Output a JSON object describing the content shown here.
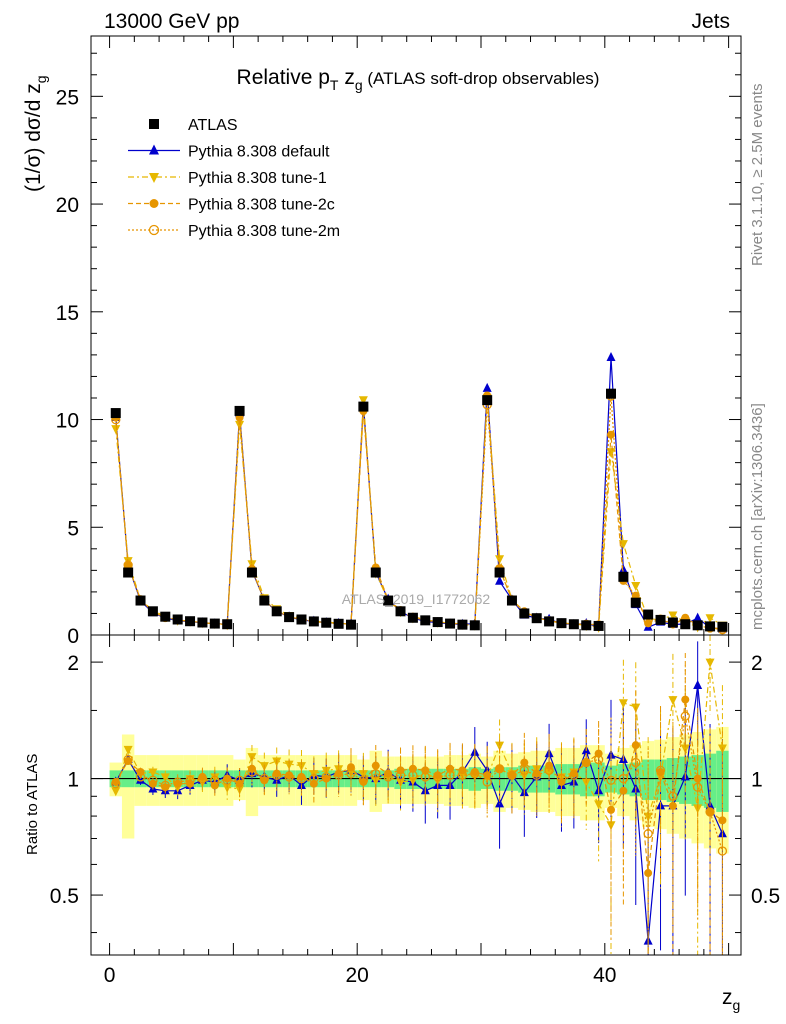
{
  "header": {
    "left": "13000 GeV pp",
    "right": "Jets"
  },
  "side_labels": {
    "rivet": "Rivet 3.1.10, ≥ 2.5M events",
    "mcplots": "mcplots.cern.ch [arXiv:1306.3436]"
  },
  "watermark": "ATLAS_2019_I1772062",
  "chart_data": {
    "type": "scatter",
    "title": "Relative p_T z_g (ATLAS soft-drop observables)",
    "title_parts": {
      "main": "Relative p",
      "sub": "T",
      "mid": " z",
      "sub2": "g",
      "tail": " (ATLAS soft-drop observables)"
    },
    "xlabel": "z_g",
    "xlabel_parts": {
      "main": "z",
      "sub": "g"
    },
    "ylabel": "(1/σ) dσ/d z_g",
    "ylabel_parts": {
      "main": "(1/σ) dσ/d z",
      "sub": "g"
    },
    "ratio_ylabel": "Ratio to ATLAS",
    "xlim": [
      -1.5,
      51
    ],
    "ylim": [
      0,
      27.8
    ],
    "ratio_ylim": [
      0.35,
      2.35
    ],
    "x_ticks": [
      0,
      20,
      40
    ],
    "y_ticks": [
      0,
      5,
      10,
      15,
      20,
      25
    ],
    "ratio_ticks": [
      0.5,
      1,
      2
    ],
    "x": [
      0.5,
      1.5,
      2.5,
      3.5,
      4.5,
      5.5,
      6.5,
      7.5,
      8.5,
      9.5,
      10.5,
      11.5,
      12.5,
      13.5,
      14.5,
      15.5,
      16.5,
      17.5,
      18.5,
      19.5,
      20.5,
      21.5,
      22.5,
      23.5,
      24.5,
      25.5,
      26.5,
      27.5,
      28.5,
      29.5,
      30.5,
      31.5,
      32.5,
      33.5,
      34.5,
      35.5,
      36.5,
      37.5,
      38.5,
      39.5,
      40.5,
      41.5,
      42.5,
      43.5,
      44.5,
      45.5,
      46.5,
      47.5,
      48.5,
      49.5
    ],
    "series": [
      {
        "name": "ATLAS",
        "color": "#000000",
        "marker": "square",
        "values": [
          10.3,
          2.9,
          1.6,
          1.1,
          0.85,
          0.72,
          0.64,
          0.58,
          0.53,
          0.5,
          10.4,
          2.9,
          1.6,
          1.1,
          0.83,
          0.72,
          0.63,
          0.57,
          0.52,
          0.48,
          10.6,
          2.9,
          1.6,
          1.1,
          0.8,
          0.68,
          0.6,
          0.53,
          0.48,
          0.45,
          10.9,
          2.9,
          1.6,
          1.0,
          0.78,
          0.63,
          0.55,
          0.5,
          0.45,
          0.42,
          11.2,
          2.7,
          1.5,
          0.95,
          0.7,
          0.58,
          0.5,
          0.45,
          0.4,
          0.38
        ]
      },
      {
        "name": "Pythia 8.308 default",
        "color": "#0000cc",
        "marker": "triangle-up",
        "ratio": [
          0.98,
          1.12,
          0.99,
          0.94,
          0.93,
          0.93,
          0.96,
          0.99,
          0.98,
          1.02,
          0.99,
          1.03,
          1.01,
          0.99,
          1.02,
          0.96,
          1.02,
          1.01,
          1.04,
          1.05,
          1.01,
          1.0,
          1.04,
          0.99,
          0.98,
          0.93,
          0.96,
          0.96,
          1.04,
          1.17,
          1.05,
          0.86,
          1.02,
          0.92,
          1.01,
          1.16,
          0.96,
          0.98,
          1.18,
          0.93,
          1.15,
          1.12,
          0.94,
          0.38,
          0.85,
          0.85,
          1.01,
          1.74,
          0.85,
          0.72
        ]
      },
      {
        "name": "Pythia 8.308 tune-1",
        "color": "#e6b800",
        "marker": "triangle-down",
        "ratio": [
          0.93,
          1.19,
          1.03,
          1.04,
          1.01,
          0.95,
          1.0,
          0.98,
          1.01,
          0.95,
          0.94,
          1.14,
          1.08,
          1.11,
          1.09,
          1.08,
          1.03,
          1.05,
          1.06,
          1.04,
          1.03,
          0.99,
          1.01,
          0.98,
          0.99,
          1.04,
          0.99,
          1.05,
          1.02,
          1.02,
          1.01,
          1.22,
          1.03,
          1.02,
          1.06,
          1.04,
          1.01,
          1.04,
          0.98,
          0.86,
          0.76,
          1.57,
          1.53,
          0.8,
          1.01,
          1.6,
          1.2,
          0.84,
          2.0,
          1.2
        ]
      },
      {
        "name": "Pythia 8.308 tune-2c",
        "color": "#e69500",
        "marker": "circle",
        "ratio": [
          0.98,
          1.11,
          1.04,
          0.97,
          0.95,
          0.97,
          0.97,
          1.01,
          0.96,
          1.0,
          0.97,
          1.06,
          0.99,
          1.03,
          1.02,
          1.01,
          0.97,
          1.0,
          1.03,
          1.07,
          0.98,
          1.08,
          1.03,
          1.05,
          1.06,
          1.05,
          1.02,
          1.06,
          1.05,
          1.04,
          1.02,
          1.06,
          1.02,
          1.1,
          1.03,
          1.08,
          0.98,
          1.03,
          1.1,
          1.16,
          0.83,
          0.93,
          1.22,
          0.57,
          1.04,
          0.85,
          1.6,
          1.0,
          0.82,
          0.78
        ]
      },
      {
        "name": "Pythia 8.308 tune-2m",
        "color": "#e69500",
        "marker": "circle-open",
        "ratio": [
          0.97,
          1.12,
          1.01,
          0.99,
          0.96,
          0.98,
          0.99,
          1.0,
          0.99,
          0.99,
          0.99,
          1.04,
          1.0,
          1.02,
          1.01,
          1.0,
          1.0,
          1.01,
          1.02,
          1.03,
          0.99,
          1.03,
          1.01,
          1.02,
          1.02,
          1.01,
          1.01,
          1.02,
          1.02,
          1.03,
          0.98,
          1.06,
          1.02,
          1.05,
          1.02,
          1.05,
          1.0,
          1.02,
          1.1,
          1.12,
          0.99,
          1.0,
          1.1,
          0.72,
          1.05,
          0.9,
          1.45,
          0.95,
          0.82,
          0.65
        ]
      }
    ],
    "uncertainty_bands": {
      "inner_color": "#66ee88",
      "outer_color": "#ffff99",
      "inner_halfwidth": [
        0.05,
        0.05,
        0.05,
        0.05,
        0.05,
        0.05,
        0.05,
        0.05,
        0.05,
        0.05,
        0.05,
        0.05,
        0.05,
        0.05,
        0.05,
        0.05,
        0.05,
        0.05,
        0.05,
        0.05,
        0.05,
        0.05,
        0.05,
        0.06,
        0.06,
        0.06,
        0.06,
        0.06,
        0.06,
        0.07,
        0.06,
        0.07,
        0.07,
        0.08,
        0.08,
        0.08,
        0.09,
        0.09,
        0.1,
        0.1,
        0.08,
        0.09,
        0.1,
        0.12,
        0.12,
        0.13,
        0.14,
        0.15,
        0.16,
        0.18
      ],
      "outer_halfwidth": [
        0.1,
        0.3,
        0.15,
        0.15,
        0.15,
        0.15,
        0.15,
        0.15,
        0.15,
        0.15,
        0.12,
        0.2,
        0.15,
        0.15,
        0.15,
        0.15,
        0.15,
        0.15,
        0.15,
        0.15,
        0.12,
        0.18,
        0.14,
        0.14,
        0.14,
        0.14,
        0.14,
        0.15,
        0.15,
        0.16,
        0.14,
        0.18,
        0.16,
        0.17,
        0.18,
        0.18,
        0.2,
        0.2,
        0.22,
        0.22,
        0.16,
        0.2,
        0.22,
        0.25,
        0.26,
        0.28,
        0.3,
        0.32,
        0.34,
        0.36
      ]
    },
    "legend_position": "top-left"
  }
}
